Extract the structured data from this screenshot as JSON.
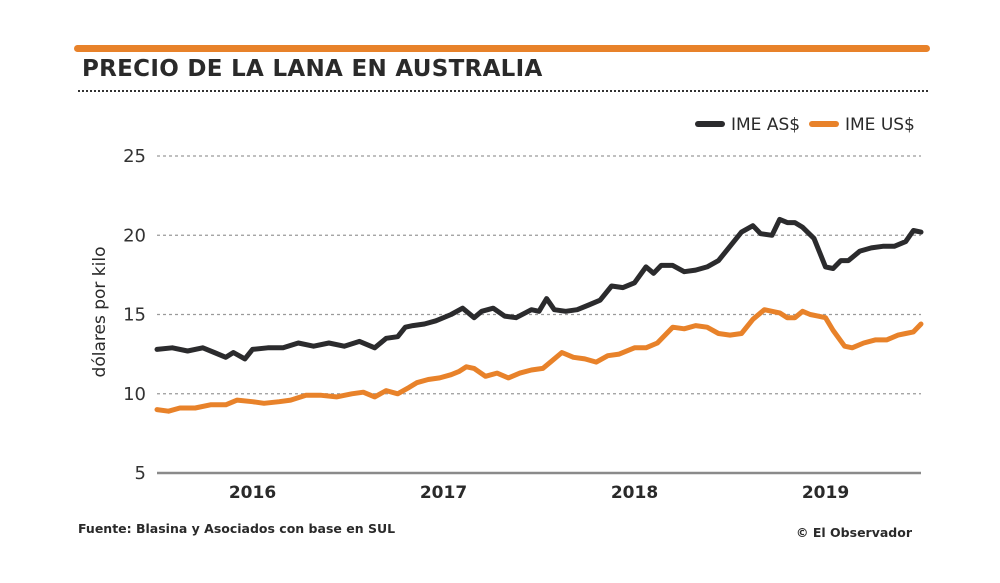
{
  "title": "PRECIO DE LA LANA EN AUSTRALIA",
  "source": "Fuente: Blasina y Asociados con base en SUL",
  "credit": "© El Observador",
  "colors": {
    "accent": "#e8822a",
    "dark": "#2b2b2d",
    "grid": "#9a9a9a"
  },
  "chart_data": {
    "type": "line",
    "title": "PRECIO DE LA LANA EN AUSTRALIA",
    "xlabel": "",
    "ylabel": "dólares por kilo",
    "ylim": [
      5,
      25
    ],
    "yticks": [
      5,
      10,
      15,
      20,
      25
    ],
    "xlim": [
      2015.5,
      2019.5
    ],
    "xticks": [
      {
        "label": "2016",
        "pos": 2016
      },
      {
        "label": "2017",
        "pos": 2017
      },
      {
        "label": "2018",
        "pos": 2018
      },
      {
        "label": "2019",
        "pos": 2019
      }
    ],
    "grid": "horizontal-dotted",
    "legend_position": "top-right",
    "series": [
      {
        "name": "IME AS$",
        "color": "#2b2b2d",
        "x": [
          2015.5,
          2015.58,
          2015.66,
          2015.74,
          2015.8,
          2015.86,
          2015.9,
          2015.96,
          2016.0,
          2016.08,
          2016.16,
          2016.24,
          2016.32,
          2016.4,
          2016.48,
          2016.56,
          2016.64,
          2016.7,
          2016.76,
          2016.8,
          2016.84,
          2016.9,
          2016.96,
          2017.04,
          2017.1,
          2017.16,
          2017.2,
          2017.26,
          2017.32,
          2017.38,
          2017.46,
          2017.5,
          2017.54,
          2017.58,
          2017.64,
          2017.7,
          2017.76,
          2017.82,
          2017.88,
          2017.94,
          2018.0,
          2018.06,
          2018.1,
          2018.14,
          2018.2,
          2018.26,
          2018.32,
          2018.38,
          2018.44,
          2018.5,
          2018.56,
          2018.62,
          2018.66,
          2018.72,
          2018.76,
          2018.8,
          2018.84,
          2018.88,
          2018.94,
          2019.0,
          2019.04,
          2019.08,
          2019.12,
          2019.18,
          2019.24,
          2019.3,
          2019.36,
          2019.42,
          2019.46,
          2019.5
        ],
        "values": [
          12.8,
          12.9,
          12.7,
          12.9,
          12.6,
          12.3,
          12.6,
          12.2,
          12.8,
          12.9,
          12.9,
          13.2,
          13.0,
          13.2,
          13.0,
          13.3,
          12.9,
          13.5,
          13.6,
          14.2,
          14.3,
          14.4,
          14.6,
          15.0,
          15.4,
          14.8,
          15.2,
          15.4,
          14.9,
          14.8,
          15.3,
          15.2,
          16.0,
          15.3,
          15.2,
          15.3,
          15.6,
          15.9,
          16.8,
          16.7,
          17.0,
          18.0,
          17.6,
          18.1,
          18.1,
          17.7,
          17.8,
          18.0,
          18.4,
          19.3,
          20.2,
          20.6,
          20.1,
          20.0,
          21.0,
          20.8,
          20.8,
          20.5,
          19.8,
          18.0,
          17.9,
          18.4,
          18.4,
          19.0,
          19.2,
          19.3,
          19.3,
          19.6,
          20.3,
          20.2
        ]
      },
      {
        "name": "IME US$",
        "color": "#e8822a",
        "x": [
          2015.5,
          2015.56,
          2015.62,
          2015.7,
          2015.78,
          2015.86,
          2015.92,
          2016.0,
          2016.06,
          2016.14,
          2016.2,
          2016.28,
          2016.36,
          2016.44,
          2016.52,
          2016.58,
          2016.64,
          2016.7,
          2016.76,
          2016.82,
          2016.86,
          2016.92,
          2016.98,
          2017.04,
          2017.08,
          2017.12,
          2017.16,
          2017.22,
          2017.28,
          2017.34,
          2017.4,
          2017.46,
          2017.52,
          2017.56,
          2017.62,
          2017.68,
          2017.74,
          2017.8,
          2017.86,
          2017.92,
          2018.0,
          2018.06,
          2018.12,
          2018.2,
          2018.26,
          2018.32,
          2018.38,
          2018.44,
          2018.5,
          2018.56,
          2018.62,
          2018.68,
          2018.72,
          2018.76,
          2018.8,
          2018.84,
          2018.88,
          2018.92,
          2018.96,
          2019.0,
          2019.04,
          2019.1,
          2019.14,
          2019.2,
          2019.26,
          2019.32,
          2019.38,
          2019.42,
          2019.46,
          2019.5
        ],
        "values": [
          9.0,
          8.9,
          9.1,
          9.1,
          9.3,
          9.3,
          9.6,
          9.5,
          9.4,
          9.5,
          9.6,
          9.9,
          9.9,
          9.8,
          10.0,
          10.1,
          9.8,
          10.2,
          10.0,
          10.4,
          10.7,
          10.9,
          11.0,
          11.2,
          11.4,
          11.7,
          11.6,
          11.1,
          11.3,
          11.0,
          11.3,
          11.5,
          11.6,
          12.0,
          12.6,
          12.3,
          12.2,
          12.0,
          12.4,
          12.5,
          12.9,
          12.9,
          13.2,
          14.2,
          14.1,
          14.3,
          14.2,
          13.8,
          13.7,
          13.8,
          14.7,
          15.3,
          15.2,
          15.1,
          14.8,
          14.8,
          15.2,
          15.0,
          14.9,
          14.8,
          14.0,
          13.0,
          12.9,
          13.2,
          13.4,
          13.4,
          13.7,
          13.8,
          13.9,
          14.4
        ]
      }
    ]
  }
}
